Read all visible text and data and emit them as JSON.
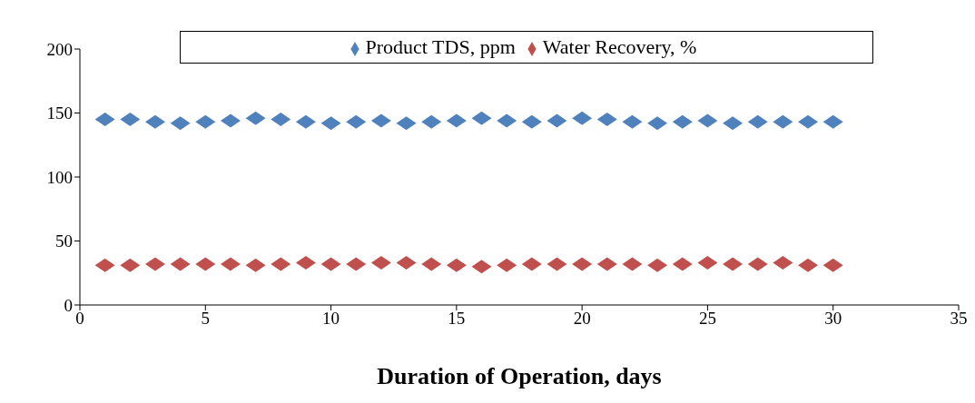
{
  "chart_data": {
    "type": "scatter",
    "xlabel": "Duration of Operation, days",
    "x": [
      1,
      2,
      3,
      4,
      5,
      6,
      7,
      8,
      9,
      10,
      11,
      12,
      13,
      14,
      15,
      16,
      17,
      18,
      19,
      20,
      21,
      22,
      23,
      24,
      25,
      26,
      27,
      28,
      29,
      30
    ],
    "series": [
      {
        "name": "Product TDS, ppm",
        "color": "#4f81bd",
        "values": [
          145,
          145,
          143,
          142,
          143,
          144,
          146,
          145,
          143,
          142,
          143,
          144,
          142,
          143,
          144,
          146,
          144,
          143,
          144,
          146,
          145,
          143,
          142,
          143,
          144,
          142,
          143,
          143,
          143,
          143
        ]
      },
      {
        "name": "Water Recovery, %",
        "color": "#c0504d",
        "values": [
          31,
          31,
          32,
          32,
          32,
          32,
          31,
          32,
          33,
          32,
          32,
          33,
          33,
          32,
          31,
          30,
          31,
          32,
          32,
          32,
          32,
          32,
          31,
          32,
          33,
          32,
          32,
          33,
          31,
          31
        ]
      }
    ],
    "xlim": [
      0,
      35
    ],
    "xticks": [
      0,
      5,
      10,
      15,
      20,
      25,
      30,
      35
    ],
    "ylim": [
      0,
      200
    ],
    "yticks": [
      0,
      50,
      100,
      150,
      200
    ],
    "grid": false,
    "legend": "top",
    "marker": "diamond"
  }
}
